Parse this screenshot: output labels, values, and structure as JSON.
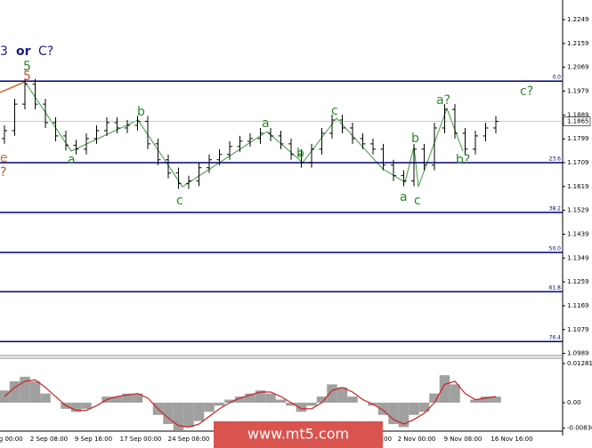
{
  "chart_data": {
    "type": "ohlc",
    "open": [
      1.18,
      1.183,
      1.193,
      1.2005,
      1.193,
      1.186,
      1.181,
      1.1775,
      1.176,
      1.18,
      1.183,
      1.186,
      1.184,
      1.185,
      1.1865,
      1.178,
      1.172,
      1.167,
      1.163,
      1.164,
      1.169,
      1.172,
      1.174,
      1.177,
      1.179,
      1.18,
      1.182,
      1.181,
      1.178,
      1.174,
      1.171,
      1.176,
      1.182,
      1.187,
      1.184,
      1.18,
      1.178,
      1.176,
      1.17,
      1.166,
      1.164,
      1.176,
      1.17,
      1.184,
      1.191,
      1.182,
      1.176,
      1.181,
      1.184
    ],
    "high": [
      1.185,
      1.195,
      1.2025,
      1.2025,
      1.195,
      1.188,
      1.183,
      1.1795,
      1.182,
      1.185,
      1.188,
      1.188,
      1.187,
      1.1885,
      1.1885,
      1.18,
      1.174,
      1.169,
      1.166,
      1.171,
      1.174,
      1.176,
      1.179,
      1.181,
      1.182,
      1.184,
      1.184,
      1.183,
      1.18,
      1.176,
      1.178,
      1.184,
      1.189,
      1.189,
      1.186,
      1.182,
      1.18,
      1.178,
      1.172,
      1.168,
      1.178,
      1.178,
      1.186,
      1.193,
      1.193,
      1.184,
      1.183,
      1.186,
      1.1885
    ],
    "low": [
      1.178,
      1.181,
      1.191,
      1.191,
      1.184,
      1.179,
      1.1755,
      1.174,
      1.174,
      1.178,
      1.181,
      1.182,
      1.182,
      1.183,
      1.176,
      1.17,
      1.165,
      1.161,
      1.161,
      1.162,
      1.167,
      1.17,
      1.172,
      1.175,
      1.177,
      1.178,
      1.179,
      1.176,
      1.172,
      1.169,
      1.169,
      1.174,
      1.18,
      1.182,
      1.178,
      1.176,
      1.174,
      1.168,
      1.164,
      1.162,
      1.162,
      1.168,
      1.168,
      1.182,
      1.18,
      1.174,
      1.174,
      1.179,
      1.182
    ],
    "close": [
      1.183,
      1.193,
      1.2005,
      1.193,
      1.186,
      1.181,
      1.1775,
      1.176,
      1.18,
      1.183,
      1.186,
      1.184,
      1.185,
      1.1865,
      1.178,
      1.172,
      1.167,
      1.163,
      1.164,
      1.169,
      1.172,
      1.174,
      1.177,
      1.179,
      1.18,
      1.182,
      1.181,
      1.178,
      1.174,
      1.171,
      1.176,
      1.182,
      1.187,
      1.184,
      1.18,
      1.178,
      1.176,
      1.17,
      1.166,
      1.164,
      1.176,
      1.17,
      1.184,
      1.191,
      1.182,
      1.176,
      1.181,
      1.184,
      1.1865
    ],
    "ylim": [
      1.0981,
      1.2323
    ],
    "yticks": [
      1.2249,
      1.2159,
      1.2069,
      1.1979,
      1.1889,
      1.1799,
      1.1709,
      1.1619,
      1.1529,
      1.1439,
      1.1349,
      1.1259,
      1.1169,
      1.1079,
      1.0989
    ],
    "last_price": 1.1865,
    "fib_levels": [
      {
        "value": 1.2017,
        "label": "0.0"
      },
      {
        "value": 1.1709,
        "label": "23.6"
      },
      {
        "value": 1.1521,
        "label": "38.2"
      },
      {
        "value": 1.137,
        "label": "50.0"
      },
      {
        "value": 1.1222,
        "label": "61.8"
      },
      {
        "value": 1.1034,
        "label": "76.4"
      }
    ],
    "x_labels": [
      "ug 00:00",
      "2 Sep 08:00",
      "9 Sep 16:00",
      "17 Sep 00:00",
      "24 Sep 08:00",
      "16:00",
      "2 Nov 00:00",
      "9 Nov 08:00",
      "16 Nov 16:00"
    ],
    "wave_labels": [
      "3",
      "or",
      "C?",
      "5",
      "5",
      "b",
      "a",
      "c",
      "a",
      "b",
      "c",
      "b",
      "a",
      "c",
      "a?",
      "b?",
      "c?",
      "e",
      "?"
    ],
    "oscillator": {
      "histogram": [
        0.004,
        0.007,
        0.0085,
        0.007,
        0.003,
        0.0,
        -0.002,
        -0.003,
        -0.002,
        0.0,
        0.002,
        0.002,
        0.003,
        0.003,
        0.0,
        -0.004,
        -0.007,
        -0.009,
        -0.008,
        -0.006,
        -0.003,
        -0.001,
        0.001,
        0.002,
        0.003,
        0.004,
        0.003,
        0.001,
        -0.001,
        -0.003,
        -0.001,
        0.002,
        0.006,
        0.005,
        0.002,
        0.0,
        -0.001,
        -0.004,
        -0.007,
        -0.008,
        -0.004,
        -0.003,
        0.003,
        0.009,
        0.006,
        0.0,
        0.001,
        0.002,
        0.002
      ],
      "signal": [
        0.002,
        0.005,
        0.007,
        0.0075,
        0.005,
        0.002,
        -0.001,
        -0.0025,
        -0.0025,
        -0.001,
        0.001,
        0.002,
        0.0025,
        0.003,
        0.0015,
        -0.002,
        -0.005,
        -0.0075,
        -0.008,
        -0.007,
        -0.0045,
        -0.002,
        0.0,
        0.0015,
        0.0025,
        0.0035,
        0.0035,
        0.002,
        0.0,
        -0.002,
        -0.002,
        0.0,
        0.004,
        0.005,
        0.0035,
        0.001,
        -0.0005,
        -0.0025,
        -0.0055,
        -0.007,
        -0.0055,
        -0.0035,
        0.0,
        0.006,
        0.007,
        0.003,
        0.001,
        0.0015,
        0.002
      ],
      "hist_color": "#a0a0a0",
      "signal_color": "#d02020",
      "ylim": [
        -0.00902,
        0.01456
      ],
      "yticks": [
        0.01281,
        {
          "value": 0,
          "label": "0.00"
        },
        -0.00836
      ]
    },
    "watermark": "www.mt5.com"
  }
}
